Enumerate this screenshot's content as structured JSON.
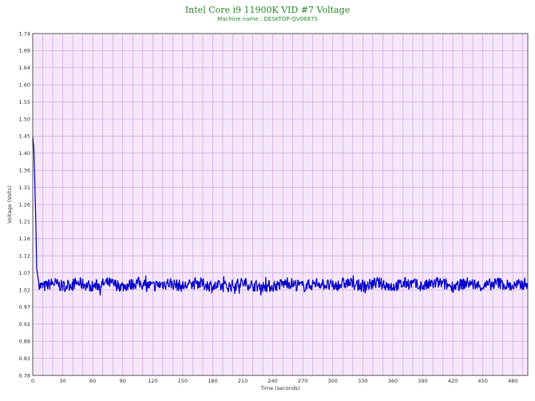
{
  "chart_data": {
    "type": "line",
    "title": "Intel Core i9 11900K VID #7 Voltage",
    "subtitle": "Machine name : DESKTOP-QV0687S",
    "xlabel": "Time (seconds)",
    "ylabel": "Voltage (Volts)",
    "xlim": [
      0,
      495
    ],
    "ylim": [
      0.78,
      1.74
    ],
    "x_ticks": [
      0,
      30,
      60,
      90,
      120,
      150,
      180,
      210,
      240,
      270,
      300,
      330,
      360,
      390,
      420,
      450,
      480
    ],
    "y_ticks": [
      "0.78",
      "0.83",
      "0.88",
      "0.92",
      "0.97",
      "1.02",
      "1.07",
      "1.12",
      "1.16",
      "1.21",
      "1.26",
      "1.31",
      "1.36",
      "1.40",
      "1.45",
      "1.50",
      "1.55",
      "1.60",
      "1.64",
      "1.69",
      "1.74"
    ],
    "grid": true,
    "series": [
      {
        "values": [
          [
            0,
            1.45
          ],
          [
            1,
            1.42
          ],
          [
            2,
            1.33
          ],
          [
            3,
            1.22
          ],
          [
            4,
            1.08
          ],
          [
            5,
            1.06
          ],
          [
            6,
            1.04
          ],
          [
            8,
            1.03
          ],
          [
            12,
            1.03
          ],
          [
            20,
            1.04
          ],
          [
            30,
            1.03
          ],
          [
            45,
            1.04
          ],
          [
            60,
            1.03
          ],
          [
            75,
            1.04
          ],
          [
            90,
            1.03
          ],
          [
            105,
            1.04
          ],
          [
            120,
            1.03
          ],
          [
            135,
            1.04
          ],
          [
            150,
            1.03
          ],
          [
            165,
            1.04
          ],
          [
            180,
            1.03
          ],
          [
            195,
            1.03
          ],
          [
            210,
            1.04
          ],
          [
            225,
            1.03
          ],
          [
            240,
            1.03
          ],
          [
            255,
            1.04
          ],
          [
            270,
            1.03
          ],
          [
            285,
            1.04
          ],
          [
            300,
            1.03
          ],
          [
            315,
            1.04
          ],
          [
            330,
            1.03
          ],
          [
            345,
            1.04
          ],
          [
            360,
            1.03
          ],
          [
            375,
            1.04
          ],
          [
            390,
            1.03
          ],
          [
            405,
            1.04
          ],
          [
            420,
            1.03
          ],
          [
            435,
            1.04
          ],
          [
            450,
            1.03
          ],
          [
            465,
            1.04
          ],
          [
            480,
            1.03
          ],
          [
            495,
            1.04
          ]
        ]
      }
    ],
    "line_color": "#0000cc",
    "plot_background": "#f5e6fa",
    "grid_color": "#c59fd6",
    "title_color": "#2e8b2e"
  }
}
